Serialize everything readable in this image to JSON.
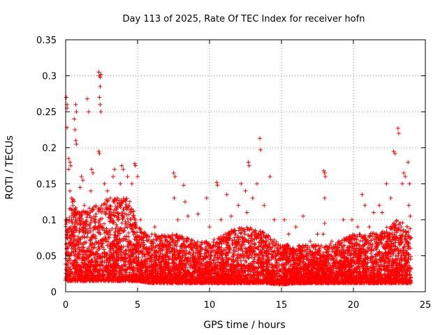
{
  "chart_data": {
    "type": "scatter",
    "title": "Day 113 of 2025, Rate Of TEC Index for receiver hofn",
    "xlabel": "GPS time / hours",
    "ylabel": "ROTI / TECUs",
    "xlim": [
      0,
      25
    ],
    "ylim": [
      0,
      0.35
    ],
    "xticks": [
      0,
      5,
      10,
      15,
      20,
      25
    ],
    "xtick_labels": [
      "0",
      "5",
      "10",
      "15",
      "20",
      "25"
    ],
    "yticks": [
      0,
      0.05,
      0.1,
      0.15,
      0.2,
      0.25,
      0.3,
      0.35
    ],
    "ytick_labels": [
      "0",
      "0.05",
      "0.1",
      "0.15",
      "0.2",
      "0.25",
      "0.3",
      "0.35"
    ],
    "grid": true,
    "marker": "+",
    "series_color": "#ff0000",
    "series": [
      {
        "name": "ROTI",
        "points": [
          [
            0.05,
            0.27
          ],
          [
            0.1,
            0.26
          ],
          [
            0.1,
            0.255
          ],
          [
            0.1,
            0.228
          ],
          [
            0.2,
            0.185
          ],
          [
            0.2,
            0.17
          ],
          [
            0.3,
            0.18
          ],
          [
            0.35,
            0.175
          ],
          [
            0.3,
            0.14
          ],
          [
            0.4,
            0.13
          ],
          [
            0.5,
            0.12
          ],
          [
            0.7,
            0.1
          ],
          [
            0.6,
            0.24
          ],
          [
            0.65,
            0.225
          ],
          [
            0.7,
            0.21
          ],
          [
            0.75,
            0.205
          ],
          [
            0.7,
            0.26
          ],
          [
            0.75,
            0.25
          ],
          [
            1.0,
            0.145
          ],
          [
            1.1,
            0.16
          ],
          [
            1.2,
            0.155
          ],
          [
            1.3,
            0.12
          ],
          [
            1.5,
            0.268
          ],
          [
            1.6,
            0.25
          ],
          [
            1.8,
            0.17
          ],
          [
            1.9,
            0.165
          ],
          [
            1.75,
            0.14
          ],
          [
            2.3,
            0.305
          ],
          [
            2.35,
            0.3
          ],
          [
            2.4,
            0.298
          ],
          [
            2.45,
            0.302
          ],
          [
            2.4,
            0.285
          ],
          [
            2.35,
            0.27
          ],
          [
            2.4,
            0.26
          ],
          [
            2.45,
            0.25
          ],
          [
            2.3,
            0.195
          ],
          [
            2.35,
            0.192
          ],
          [
            2.7,
            0.15
          ],
          [
            2.9,
            0.14
          ],
          [
            3.1,
            0.13
          ],
          [
            3.3,
            0.16
          ],
          [
            3.4,
            0.17
          ],
          [
            3.6,
            0.13
          ],
          [
            3.8,
            0.15
          ],
          [
            3.9,
            0.175
          ],
          [
            4.0,
            0.17
          ],
          [
            4.3,
            0.16
          ],
          [
            4.4,
            0.12
          ],
          [
            4.6,
            0.15
          ],
          [
            4.8,
            0.178
          ],
          [
            4.85,
            0.175
          ],
          [
            5.0,
            0.16
          ],
          [
            5.2,
            0.1
          ],
          [
            5.5,
            0.08
          ],
          [
            6.2,
            0.09
          ],
          [
            6.5,
            0.075
          ],
          [
            7.5,
            0.165
          ],
          [
            7.6,
            0.16
          ],
          [
            7.55,
            0.13
          ],
          [
            7.8,
            0.1
          ],
          [
            8.2,
            0.148
          ],
          [
            8.3,
            0.125
          ],
          [
            8.5,
            0.105
          ],
          [
            9.2,
            0.108
          ],
          [
            9.8,
            0.13
          ],
          [
            10.0,
            0.09
          ],
          [
            10.5,
            0.152
          ],
          [
            10.55,
            0.148
          ],
          [
            10.8,
            0.1
          ],
          [
            11.2,
            0.135
          ],
          [
            11.5,
            0.105
          ],
          [
            12.0,
            0.12
          ],
          [
            12.2,
            0.15
          ],
          [
            12.5,
            0.14
          ],
          [
            12.6,
            0.11
          ],
          [
            12.7,
            0.18
          ],
          [
            12.75,
            0.175
          ],
          [
            13.0,
            0.13
          ],
          [
            13.5,
            0.213
          ],
          [
            13.55,
            0.197
          ],
          [
            13.3,
            0.15
          ],
          [
            13.8,
            0.12
          ],
          [
            14.2,
            0.16
          ],
          [
            14.5,
            0.1
          ],
          [
            15.2,
            0.1
          ],
          [
            15.5,
            0.08
          ],
          [
            16.0,
            0.09
          ],
          [
            16.5,
            0.105
          ],
          [
            17.0,
            0.07
          ],
          [
            17.5,
            0.08
          ],
          [
            17.9,
            0.08
          ],
          [
            17.95,
            0.168
          ],
          [
            18.0,
            0.165
          ],
          [
            18.05,
            0.16
          ],
          [
            18.0,
            0.13
          ],
          [
            18.0,
            0.095
          ],
          [
            18.5,
            0.07
          ],
          [
            19.0,
            0.07
          ],
          [
            19.3,
            0.1
          ],
          [
            19.9,
            0.1
          ],
          [
            20.3,
            0.09
          ],
          [
            20.6,
            0.135
          ],
          [
            20.8,
            0.12
          ],
          [
            21.1,
            0.09
          ],
          [
            21.4,
            0.11
          ],
          [
            21.8,
            0.12
          ],
          [
            22.0,
            0.11
          ],
          [
            22.3,
            0.15
          ],
          [
            22.6,
            0.13
          ],
          [
            22.8,
            0.195
          ],
          [
            22.9,
            0.192
          ],
          [
            23.1,
            0.227
          ],
          [
            23.15,
            0.22
          ],
          [
            23.4,
            0.15
          ],
          [
            23.5,
            0.165
          ],
          [
            23.6,
            0.16
          ],
          [
            23.8,
            0.18
          ],
          [
            23.9,
            0.15
          ],
          [
            23.85,
            0.12
          ],
          [
            23.95,
            0.105
          ]
        ]
      }
    ],
    "dense_band": {
      "hours_start": 0.0,
      "hours_end": 24.0,
      "points_per_hour": 320,
      "envelope_hours": [
        0,
        0.5,
        1,
        2,
        3,
        4,
        4.5,
        5,
        6,
        7,
        8,
        9,
        10,
        11,
        12,
        13,
        14,
        15,
        16,
        17,
        18,
        19,
        20,
        21,
        22,
        23,
        24
      ],
      "envelope_low": [
        0.015,
        0.015,
        0.015,
        0.015,
        0.015,
        0.015,
        0.015,
        0.015,
        0.012,
        0.012,
        0.012,
        0.012,
        0.012,
        0.012,
        0.012,
        0.012,
        0.012,
        0.01,
        0.012,
        0.012,
        0.012,
        0.012,
        0.012,
        0.012,
        0.012,
        0.012,
        0.012
      ],
      "envelope_high": [
        0.1,
        0.13,
        0.11,
        0.12,
        0.13,
        0.13,
        0.13,
        0.09,
        0.08,
        0.08,
        0.08,
        0.07,
        0.07,
        0.08,
        0.09,
        0.09,
        0.08,
        0.065,
        0.065,
        0.065,
        0.065,
        0.07,
        0.08,
        0.08,
        0.085,
        0.1,
        0.09
      ]
    }
  }
}
